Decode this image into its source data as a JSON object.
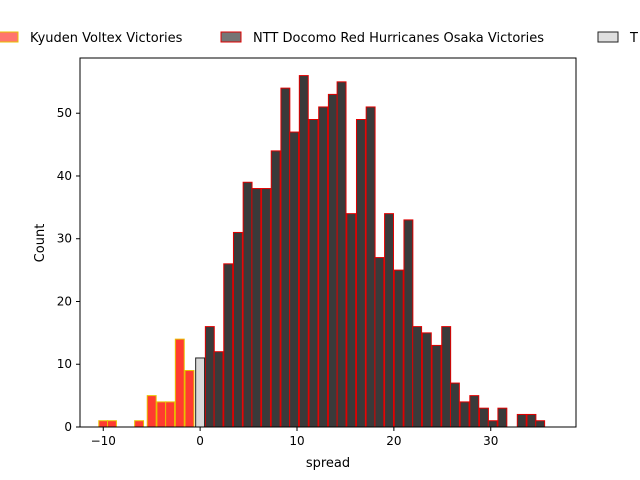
{
  "chart_data": {
    "type": "bar",
    "xlabel": "spread",
    "ylabel": "Count",
    "xlim": [
      -12.4,
      38.8
    ],
    "ylim": [
      0,
      58.8
    ],
    "xticks": [
      -10,
      0,
      10,
      20,
      30
    ],
    "yticks": [
      0,
      10,
      20,
      30,
      40,
      50
    ],
    "bin_width": 0.92,
    "legend_position": "top",
    "series": [
      {
        "name": "Kyuden Voltex Victories",
        "fill": "#ff3b30",
        "edge": "#e8c000",
        "bins": [
          {
            "x": -10.0,
            "count": 1
          },
          {
            "x": -9.1,
            "count": 1
          },
          {
            "x": -6.3,
            "count": 1
          },
          {
            "x": -5.0,
            "count": 5
          },
          {
            "x": -4.0,
            "count": 4
          },
          {
            "x": -3.1,
            "count": 4
          },
          {
            "x": -2.1,
            "count": 14
          },
          {
            "x": -1.1,
            "count": 9
          }
        ]
      },
      {
        "name": "NTT Docomo Red Hurricanes Osaka Victories",
        "fill": "#3a3a3a",
        "edge": "#e00000",
        "bins": [
          {
            "x": 1.0,
            "count": 16
          },
          {
            "x": 1.9,
            "count": 12
          },
          {
            "x": 2.9,
            "count": 26
          },
          {
            "x": 3.9,
            "count": 31
          },
          {
            "x": 4.9,
            "count": 39
          },
          {
            "x": 5.8,
            "count": 38
          },
          {
            "x": 6.8,
            "count": 38
          },
          {
            "x": 7.8,
            "count": 44
          },
          {
            "x": 8.8,
            "count": 54
          },
          {
            "x": 9.7,
            "count": 47
          },
          {
            "x": 10.7,
            "count": 56
          },
          {
            "x": 11.7,
            "count": 49
          },
          {
            "x": 12.7,
            "count": 51
          },
          {
            "x": 13.7,
            "count": 53
          },
          {
            "x": 14.6,
            "count": 55
          },
          {
            "x": 15.6,
            "count": 34
          },
          {
            "x": 16.6,
            "count": 49
          },
          {
            "x": 17.6,
            "count": 51
          },
          {
            "x": 18.5,
            "count": 27
          },
          {
            "x": 19.5,
            "count": 34
          },
          {
            "x": 20.5,
            "count": 25
          },
          {
            "x": 21.5,
            "count": 33
          },
          {
            "x": 22.4,
            "count": 16
          },
          {
            "x": 23.4,
            "count": 15
          },
          {
            "x": 24.4,
            "count": 13
          },
          {
            "x": 25.4,
            "count": 16
          },
          {
            "x": 26.3,
            "count": 7
          },
          {
            "x": 27.3,
            "count": 4
          },
          {
            "x": 28.3,
            "count": 5
          },
          {
            "x": 29.3,
            "count": 3
          },
          {
            "x": 30.2,
            "count": 1
          },
          {
            "x": 31.2,
            "count": 3
          },
          {
            "x": 33.2,
            "count": 2
          },
          {
            "x": 34.2,
            "count": 2
          },
          {
            "x": 35.1,
            "count": 1
          }
        ]
      },
      {
        "name": "T",
        "fill": "#d9d9d9",
        "edge": "#222222",
        "bins": [
          {
            "x": 0.0,
            "count": 11
          }
        ]
      }
    ]
  }
}
